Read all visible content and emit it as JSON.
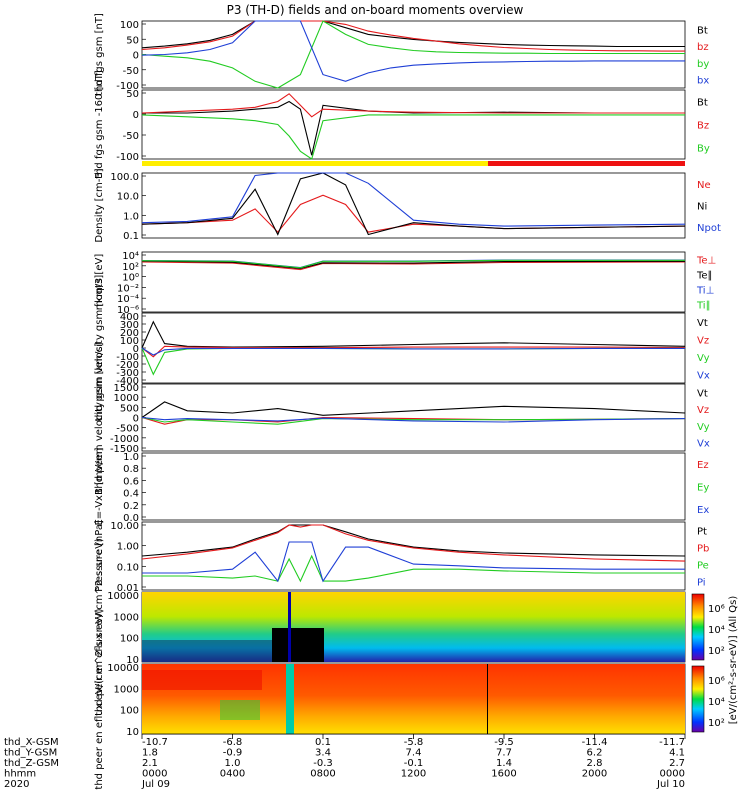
{
  "title": "P3 (TH-D) fields and on-board moments overview",
  "colors": {
    "black": "#000000",
    "red": "#e41a1c",
    "green": "#22cc22",
    "blue": "#1f3fd6",
    "yellow": "#ffee00",
    "barRed": "#ee1111"
  },
  "colorbar": {
    "label": "[eV/(cm²-s-sr-eV)] (All Qs)",
    "ticks": [
      "10⁶",
      "10⁴",
      "10²"
    ]
  },
  "ephemeris": {
    "rows": [
      {
        "label": "thd_X-GSM",
        "values": [
          "-10.7",
          "-6.8",
          "0.1",
          "-5.8",
          "-9.5",
          "-11.4",
          "-11.7"
        ]
      },
      {
        "label": "thd_Y-GSM",
        "values": [
          "1.8",
          "-0.9",
          "3.4",
          "7.4",
          "7.7",
          "6.2",
          "4.1"
        ]
      },
      {
        "label": "thd_Z-GSM",
        "values": [
          "2.1",
          "1.0",
          "-0.3",
          "-0.1",
          "1.4",
          "2.8",
          "2.7"
        ]
      },
      {
        "label": "hhmm",
        "values": [
          "0000",
          "0400",
          "0800",
          "1200",
          "1600",
          "2000",
          "0000"
        ]
      },
      {
        "label": "2020",
        "values": [
          "Jul 09",
          "",
          "",
          "",
          "",
          "",
          "Jul 10"
        ]
      }
    ]
  },
  "chart_data": [
    {
      "type": "line",
      "ylabel": "thd fgs gsm [nT]",
      "ylim": [
        -100,
        100
      ],
      "yticks": [
        "100",
        "50",
        "0",
        "-50",
        "-100"
      ],
      "legend": [
        "Bt",
        "bz",
        "by",
        "bx"
      ],
      "x": [
        0,
        1,
        2,
        3,
        4,
        5,
        6,
        7,
        8,
        9,
        10,
        11,
        12,
        13,
        14,
        15,
        16,
        17,
        18,
        19,
        20,
        21,
        22,
        23,
        24
      ],
      "series": [
        {
          "name": "Bt",
          "values": [
            20,
            25,
            32,
            42,
            60,
            100,
            100,
            100,
            100,
            80,
            60,
            52,
            45,
            40,
            36,
            33,
            30,
            28,
            27,
            26,
            25,
            24,
            24,
            24,
            24
          ]
        },
        {
          "name": "bz",
          "values": [
            15,
            20,
            28,
            38,
            55,
            100,
            100,
            100,
            100,
            90,
            70,
            58,
            48,
            40,
            32,
            26,
            21,
            18,
            15,
            13,
            12,
            11,
            11,
            10,
            10
          ]
        },
        {
          "name": "by",
          "values": [
            0,
            -5,
            -10,
            -20,
            -40,
            -80,
            -100,
            -60,
            100,
            60,
            30,
            20,
            12,
            8,
            6,
            5,
            4,
            4,
            3,
            3,
            3,
            3,
            3,
            3,
            3
          ]
        },
        {
          "name": "bx",
          "values": [
            -2,
            0,
            5,
            15,
            35,
            100,
            100,
            100,
            -60,
            -80,
            -55,
            -40,
            -32,
            -28,
            -25,
            -23,
            -22,
            -21,
            -20,
            -20,
            -19,
            -19,
            -19,
            -19,
            -19
          ]
        }
      ]
    },
    {
      "type": "line",
      "ylabel": "thd fgs gsm -160 [nT]",
      "ylim": [
        -120,
        60
      ],
      "yticks": [
        "50",
        "0",
        "-50",
        "-100"
      ],
      "legend": [
        "Bt",
        "Bz",
        "By"
      ],
      "x": [
        0,
        2,
        4,
        5,
        6,
        6.5,
        7,
        7.5,
        8,
        10,
        12,
        16,
        20,
        24
      ],
      "series": [
        {
          "name": "Bt",
          "values": [
            0,
            0,
            5,
            10,
            15,
            30,
            10,
            -110,
            20,
            5,
            0,
            2,
            0,
            0
          ]
        },
        {
          "name": "Bz",
          "values": [
            0,
            5,
            10,
            15,
            30,
            50,
            20,
            -10,
            10,
            5,
            2,
            0,
            0,
            0
          ]
        },
        {
          "name": "By",
          "values": [
            -5,
            -10,
            -15,
            -20,
            -30,
            -60,
            -100,
            -120,
            -20,
            -5,
            -5,
            -5,
            -5,
            -5
          ]
        }
      ]
    },
    {
      "type": "line",
      "ylabel": "Density [cm-3]",
      "scale": "log",
      "ylim": [
        0.1,
        200
      ],
      "yticks": [
        "100.0",
        "10.0",
        "1.0",
        "0.1"
      ],
      "legend": [
        "Ne",
        "Ni",
        "Npot"
      ],
      "x": [
        0,
        2,
        4,
        5,
        6,
        7,
        8,
        9,
        10,
        12,
        14,
        16,
        20,
        24
      ],
      "series": [
        {
          "name": "Ne",
          "values": [
            0.5,
            0.6,
            0.8,
            3,
            0.2,
            5,
            15,
            5,
            0.2,
            0.5,
            0.4,
            0.3,
            0.35,
            0.4
          ]
        },
        {
          "name": "Ni",
          "values": [
            0.5,
            0.6,
            1.0,
            30,
            0.15,
            100,
            200,
            50,
            0.15,
            0.6,
            0.4,
            0.3,
            0.35,
            0.4
          ]
        },
        {
          "name": "Npot",
          "values": [
            0.6,
            0.7,
            1.2,
            150,
            200,
            200,
            200,
            200,
            60,
            0.8,
            0.5,
            0.4,
            0.45,
            0.5
          ]
        }
      ]
    },
    {
      "type": "line",
      "ylabel": "moqt3 [eV]",
      "scale": "log",
      "ylim": [
        1e-07,
        100000
      ],
      "yticks": [
        "10⁴",
        "10²",
        "10⁰",
        "10⁻²",
        "10⁻⁴",
        "10⁻⁶"
      ],
      "legend": [
        "Te⊥",
        "Te∥",
        "Ti⊥",
        "Ti∥"
      ],
      "x": [
        0,
        4,
        7,
        8,
        12,
        16,
        20,
        24
      ],
      "series": [
        {
          "name": "Te⊥",
          "values": [
            1000,
            600,
            30,
            500,
            400,
            800,
            900,
            1000
          ]
        },
        {
          "name": "Te∥",
          "values": [
            1500,
            900,
            50,
            700,
            600,
            1200,
            1300,
            1400
          ]
        },
        {
          "name": "Ti⊥",
          "values": [
            2000,
            1500,
            80,
            1500,
            1500,
            2500,
            2500,
            2500
          ]
        },
        {
          "name": "Ti∥",
          "values": [
            1800,
            1400,
            70,
            1400,
            1400,
            2200,
            2200,
            2200
          ]
        }
      ]
    },
    {
      "type": "line",
      "ylabel": "thd peim velocity gsm [km/s]",
      "ylim": [
        -400,
        400
      ],
      "yticks": [
        "400",
        "300",
        "200",
        "100",
        "0",
        "-100",
        "-200",
        "-300",
        "-400"
      ],
      "legend": [
        "Vt",
        "Vz",
        "Vy",
        "Vx"
      ],
      "x": [
        0,
        0.5,
        1,
        2,
        4,
        8,
        12,
        14,
        16,
        20,
        24
      ],
      "series": [
        {
          "name": "Vt",
          "values": [
            0,
            300,
            50,
            20,
            10,
            20,
            40,
            50,
            60,
            40,
            20
          ]
        },
        {
          "name": "Vz",
          "values": [
            0,
            -100,
            20,
            10,
            5,
            5,
            10,
            10,
            10,
            10,
            5
          ]
        },
        {
          "name": "Vy",
          "values": [
            0,
            -300,
            -50,
            -10,
            -5,
            -5,
            -10,
            -10,
            -10,
            -5,
            -5
          ]
        },
        {
          "name": "Vx",
          "values": [
            0,
            -80,
            -20,
            -5,
            -5,
            -5,
            -10,
            -10,
            -10,
            -5,
            -5
          ]
        }
      ]
    },
    {
      "type": "line",
      "ylabel": "thd peem velocity gsm [km/s]",
      "ylim": [
        -1500,
        1500
      ],
      "yticks": [
        "1500",
        "1000",
        "500",
        "0",
        "-500",
        "-1000",
        "-1500"
      ],
      "legend": [
        "Vt",
        "Vz",
        "Vy",
        "Vx"
      ],
      "x": [
        0,
        1,
        2,
        4,
        6,
        8,
        12,
        16,
        20,
        24
      ],
      "series": [
        {
          "name": "Vt",
          "values": [
            0,
            700,
            300,
            200,
            400,
            100,
            300,
            500,
            400,
            200
          ]
        },
        {
          "name": "Vz",
          "values": [
            0,
            -300,
            -100,
            -100,
            -200,
            0,
            -50,
            -100,
            -80,
            -50
          ]
        },
        {
          "name": "Vy",
          "values": [
            0,
            -200,
            -100,
            -200,
            -300,
            -50,
            -100,
            -100,
            -80,
            -50
          ]
        },
        {
          "name": "Vx",
          "values": [
            0,
            -100,
            -50,
            -100,
            -150,
            -30,
            -150,
            -200,
            -100,
            -50
          ]
        }
      ]
    },
    {
      "type": "line",
      "ylabel": "E=-VxB [mV/m]",
      "ylim": [
        0,
        1
      ],
      "yticks": [
        "1.0",
        "0.8",
        "0.6",
        "0.4",
        "0.2",
        "0.0"
      ],
      "legend": [
        "Ez",
        "Ey",
        "Ex"
      ],
      "x": [],
      "series": []
    },
    {
      "type": "line",
      "ylabel": "Pressure [nPa]",
      "scale": "log",
      "ylim": [
        0.003,
        30
      ],
      "yticks": [
        "10.00",
        "1.00",
        "0.10",
        "0.01"
      ],
      "legend": [
        "Pt",
        "Pb",
        "Pe",
        "Pi"
      ],
      "x": [
        0,
        2,
        4,
        5,
        6,
        6.5,
        7,
        7.5,
        8,
        9,
        10,
        12,
        14,
        16,
        20,
        24
      ],
      "series": [
        {
          "name": "Pt",
          "values": [
            0.3,
            0.5,
            1.0,
            3,
            8,
            20,
            20,
            20,
            20,
            8,
            3,
            1.0,
            0.6,
            0.45,
            0.35,
            0.3
          ]
        },
        {
          "name": "Pb",
          "values": [
            0.2,
            0.4,
            0.9,
            2.5,
            7,
            20,
            15,
            20,
            20,
            6,
            2.5,
            0.9,
            0.5,
            0.35,
            0.2,
            0.15
          ]
        },
        {
          "name": "Pe",
          "values": [
            0.02,
            0.02,
            0.015,
            0.02,
            0.01,
            0.2,
            0.01,
            0.3,
            0.01,
            0.01,
            0.015,
            0.05,
            0.05,
            0.04,
            0.03,
            0.03
          ]
        },
        {
          "name": "Pi",
          "values": [
            0.03,
            0.03,
            0.05,
            0.5,
            0.01,
            2,
            2,
            2,
            0.01,
            1,
            1,
            0.1,
            0.08,
            0.06,
            0.05,
            0.05
          ]
        }
      ]
    },
    {
      "type": "heatmap",
      "ylabel": "thd peir en eflux eV/(cm^2-s-sr-eV)",
      "scale": "log",
      "ylim": [
        5,
        20000
      ],
      "yticks": [
        "10000",
        "1000",
        "100",
        "10"
      ]
    },
    {
      "type": "heatmap",
      "ylabel": "thd peer en eflux eV/(cm^2-s-sr-eV)",
      "scale": "log",
      "ylim": [
        5,
        20000
      ],
      "yticks": [
        "10000",
        "1000",
        "100",
        "10"
      ]
    }
  ]
}
